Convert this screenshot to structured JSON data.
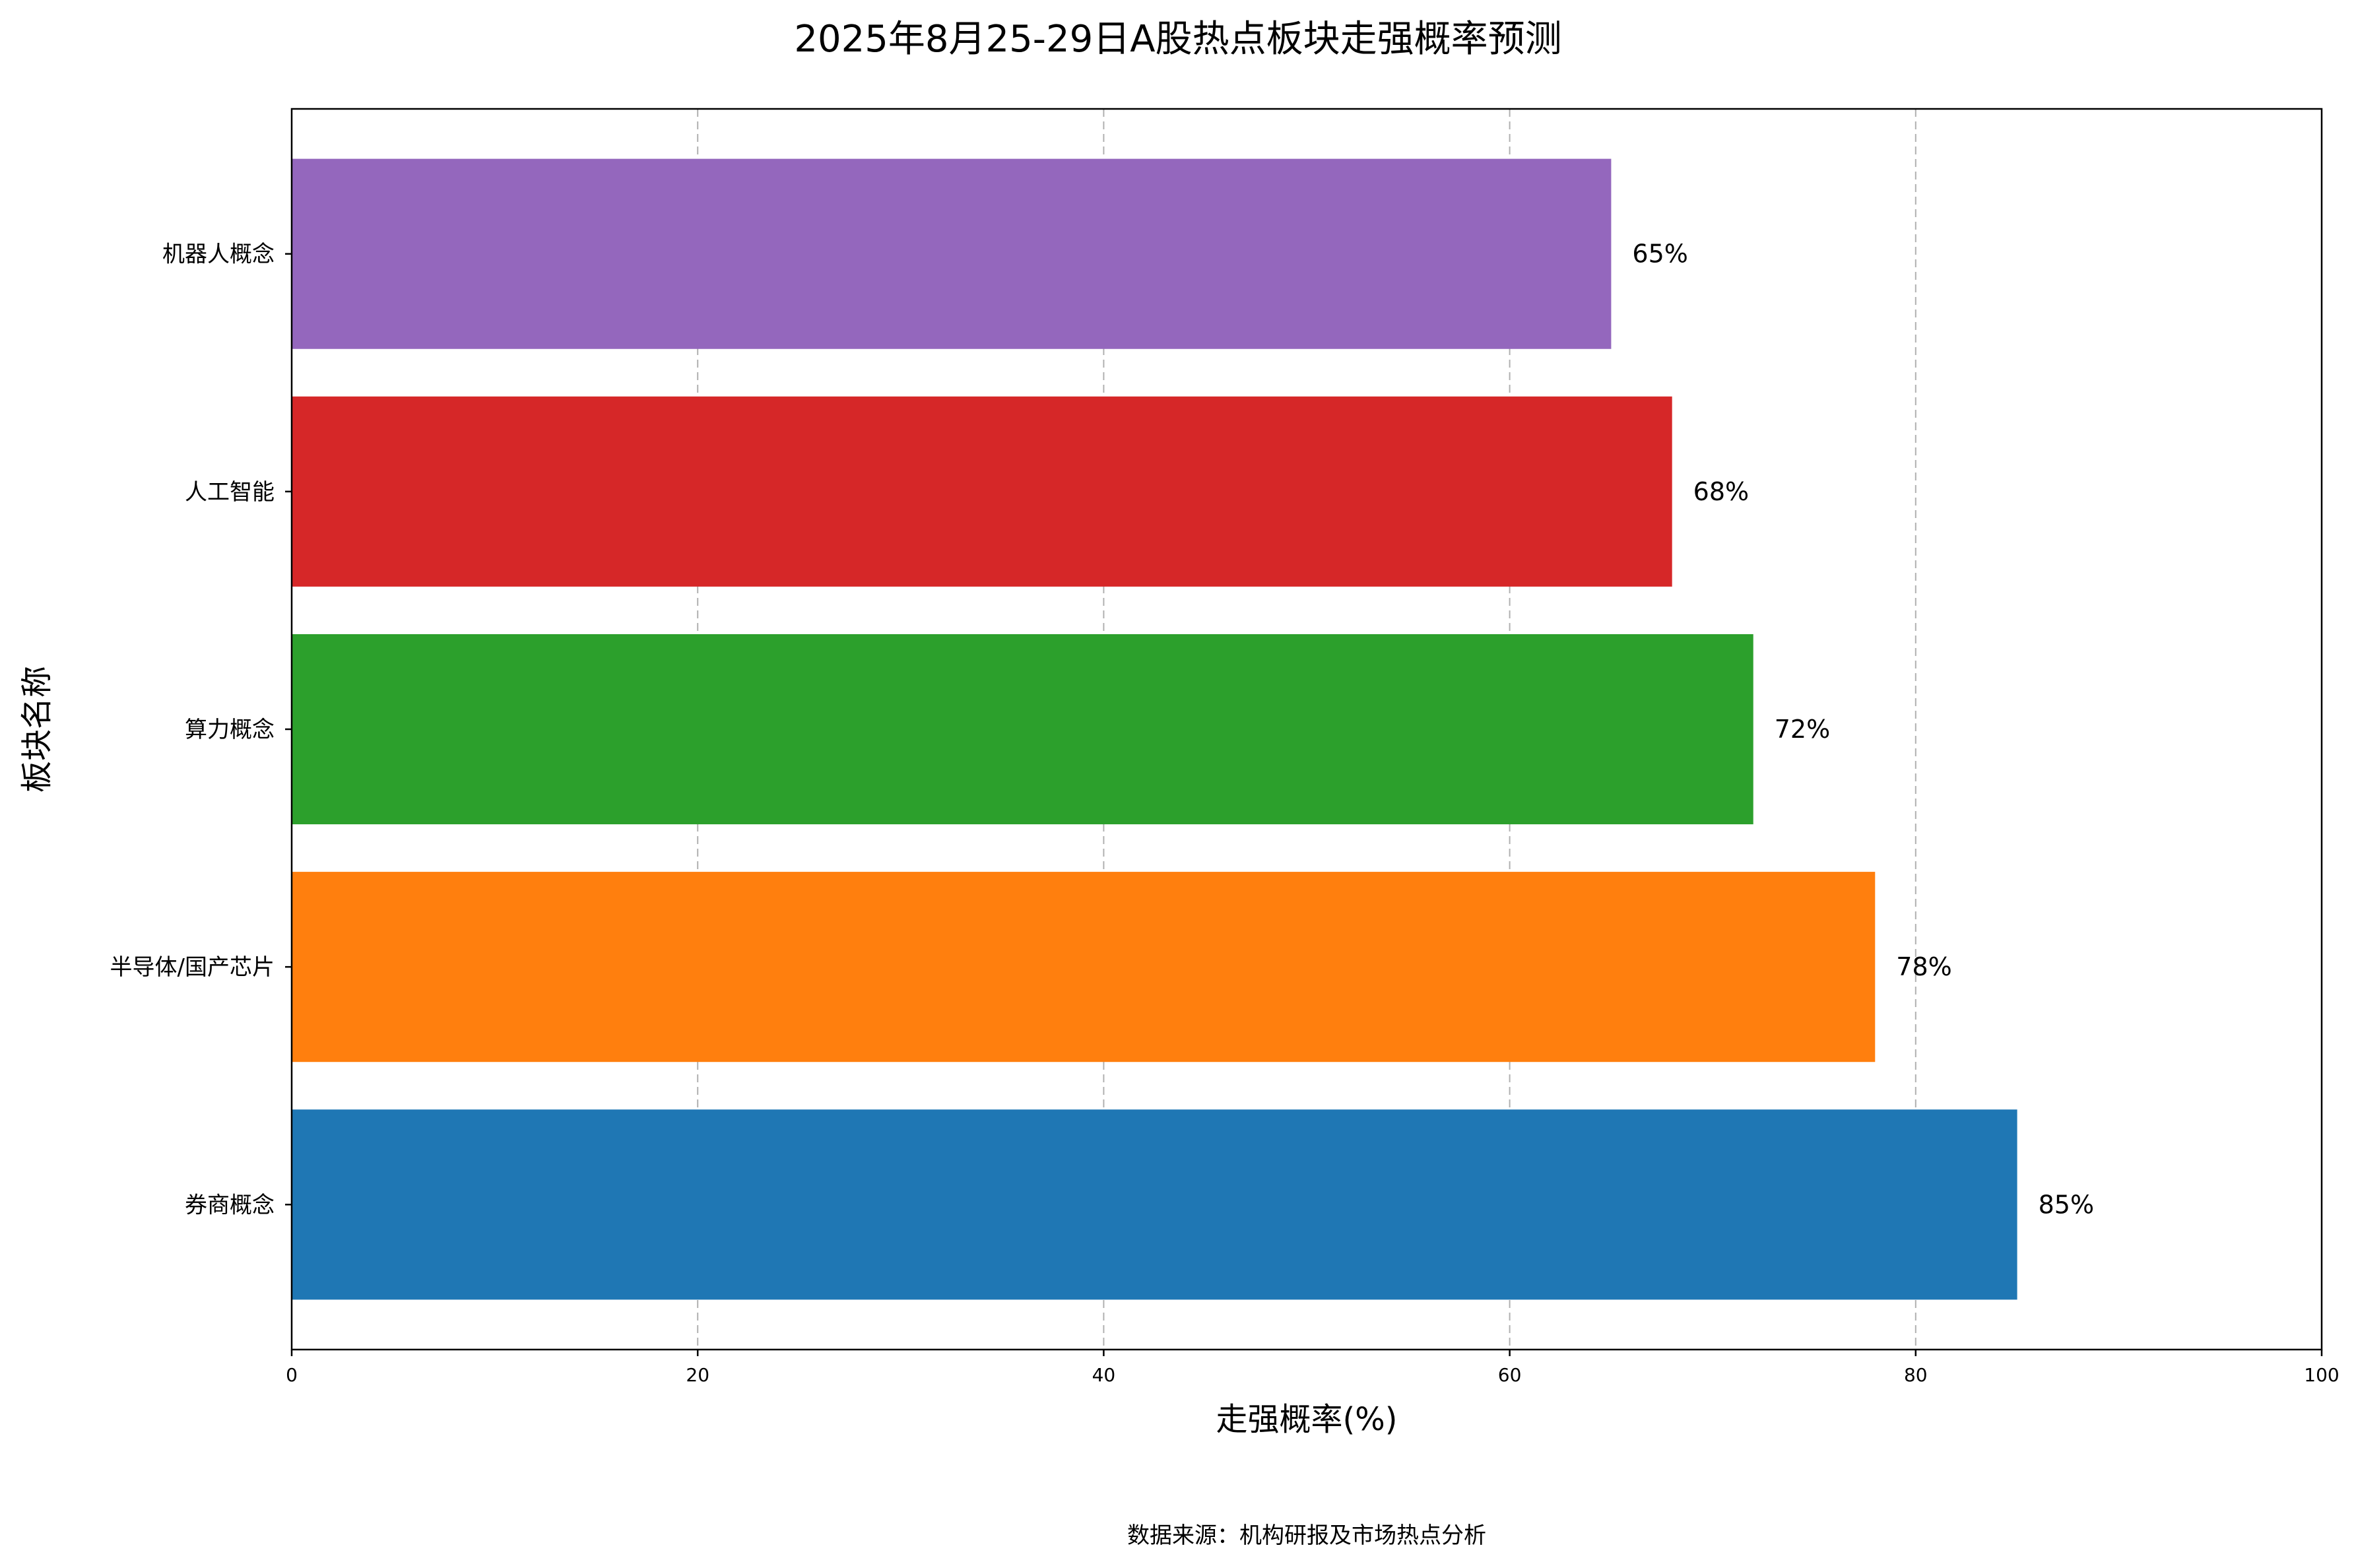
{
  "chart_data": {
    "type": "bar",
    "orientation": "horizontal",
    "title": "2025年8月25-29日A股热点板块走强概率预测",
    "xlabel": "走强概率(%)",
    "ylabel": "板块名称",
    "categories": [
      "券商概念",
      "半导体/国产芯片",
      "算力概念",
      "人工智能",
      "机器人概念"
    ],
    "values": [
      85,
      78,
      72,
      68,
      65
    ],
    "value_labels": [
      "85%",
      "78%",
      "72%",
      "68%",
      "65%"
    ],
    "colors": [
      "#1f77b4",
      "#ff7f0e",
      "#2ca02c",
      "#d62728",
      "#9467bd"
    ],
    "xlim": [
      0,
      100
    ],
    "xticks": [
      0,
      20,
      40,
      60,
      80,
      100
    ],
    "xtick_labels": [
      "0",
      "20",
      "40",
      "60",
      "80",
      "100"
    ],
    "grid": "vertical dashed",
    "gridline_color": "#b0b0b0",
    "legend": "none"
  },
  "footer": {
    "source": "数据来源：机构研报及市场热点分析"
  }
}
